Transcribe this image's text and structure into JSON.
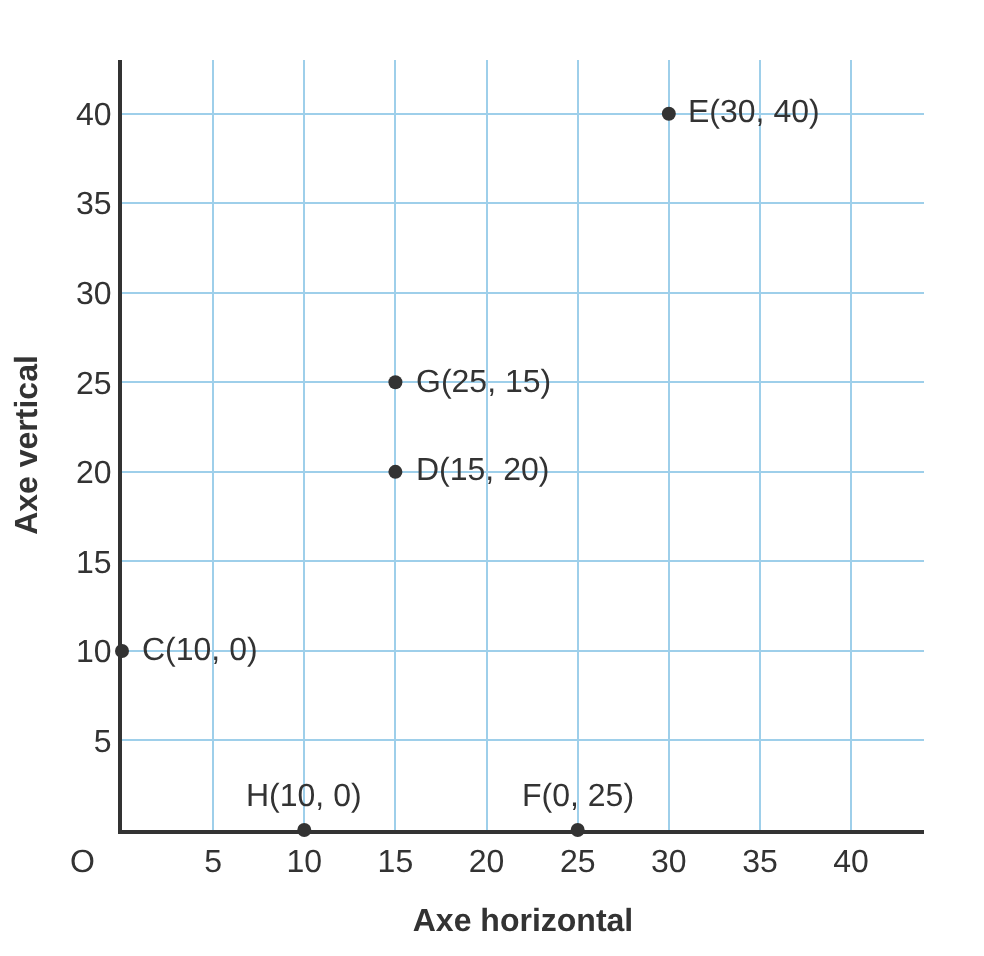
{
  "chart_data": {
    "type": "scatter",
    "xlabel": "Axe horizontal",
    "ylabel": "Axe vertical",
    "x": [
      30,
      15,
      15,
      0,
      10,
      25
    ],
    "series": [
      {
        "color": "#333333",
        "values": [
          40,
          25,
          20,
          10,
          0,
          0
        ]
      }
    ],
    "annotations": [
      {
        "text": "E(30, 40)",
        "x": 30,
        "y": 40
      },
      {
        "text": "G(25, 15)",
        "x": 15,
        "y": 25
      },
      {
        "text": "D(15, 20)",
        "x": 15,
        "y": 20
      },
      {
        "text": "C(10, 0)",
        "x": 0,
        "y": 10
      },
      {
        "text": "H(10, 0)",
        "x": 10,
        "y": 0
      },
      {
        "text": "F(0, 25)",
        "x": 25,
        "y": 0
      },
      "O"
    ],
    "xlim": [
      0,
      44
    ],
    "ylim": [
      0,
      43
    ],
    "xticks": [
      5,
      10,
      15,
      20,
      25,
      30,
      35,
      40
    ],
    "yticks": [
      5,
      10,
      15,
      20,
      25,
      30,
      35,
      40
    ],
    "grid": true,
    "marker": "circle"
  }
}
